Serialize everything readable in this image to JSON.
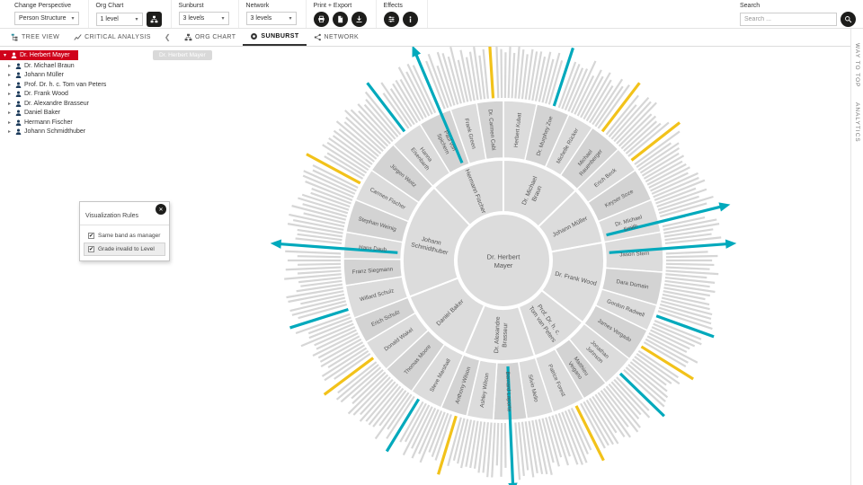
{
  "toolbar": {
    "change_perspective": {
      "label": "Change Perspective",
      "value": "Person Structure"
    },
    "org_chart": {
      "label": "Org Chart",
      "value": "1 level"
    },
    "sunburst": {
      "label": "Sunburst",
      "value": "3 levels"
    },
    "network": {
      "label": "Network",
      "value": "3 levels"
    },
    "print_export": {
      "label": "Print + Export",
      "icons": [
        "print-icon",
        "export-document-icon",
        "download-icon"
      ]
    },
    "effects": {
      "label": "Effects",
      "icons": [
        "effects-sliders-icon",
        "info-icon"
      ]
    },
    "search": {
      "label": "Search",
      "placeholder": "Search ...",
      "icon": "search-icon"
    }
  },
  "tabbar": {
    "tree_view": "TREE VIEW",
    "critical_analysis": "CRITICAL ANALYSIS",
    "org_chart": "ORG CHART",
    "sunburst": "SUNBURST",
    "network": "NETWORK"
  },
  "sidebar": {
    "items": [
      {
        "label": "Dr. Herbert Mayer",
        "selected": true,
        "depth": 0
      },
      {
        "label": "Dr. Michael Braun",
        "depth": 1
      },
      {
        "label": "Johann Müller",
        "depth": 1
      },
      {
        "label": "Prof. Dr. h. c. Tom van Peters",
        "depth": 1
      },
      {
        "label": "Dr. Frank Wood",
        "depth": 1
      },
      {
        "label": "Dr. Alexandre Brasseur",
        "depth": 1
      },
      {
        "label": "Daniel Baker",
        "depth": 1
      },
      {
        "label": "Hermann Fischer",
        "depth": 1
      },
      {
        "label": "Johann Schmidthuber",
        "depth": 1
      }
    ]
  },
  "panel": {
    "title": "Visualization Rules",
    "options": [
      {
        "label": "Same band as manager",
        "checked": true
      },
      {
        "label": "Grade invalid to Level",
        "checked": true
      }
    ]
  },
  "ghost_chip": "Dr. Herbert Mayer",
  "right_rail": {
    "items": [
      "WAY TO TOP",
      "ANALYTICS"
    ]
  },
  "chart_data": {
    "type": "sunburst",
    "center": "Dr. Herbert Mayer",
    "start_angle_deg": -90,
    "levels_shown": 3,
    "colors": {
      "ring": "#dcdcdc",
      "ring_alt": "#d3d3d3",
      "hair": "#d6d6d6",
      "teal": "#00a9bc",
      "yellow": "#f2c21a",
      "label": "#555555",
      "selected_red": "#d0021b"
    },
    "branches": [
      {
        "name": "Dr. Michael Braun",
        "children": [
          {
            "name": "Herbert Kubat",
            "leaves": 5
          },
          {
            "name": "Dr. Murphey Zoe",
            "leaves": 5
          },
          {
            "name": "Michelle Rücker",
            "leaves": 4
          },
          {
            "name": "Michael Rauenberger",
            "leaves": 5
          }
        ]
      },
      {
        "name": "Johann Müller",
        "children": [
          {
            "name": "Erich Beck",
            "leaves": 4
          },
          {
            "name": "Keyser Soze",
            "leaves": 5
          },
          {
            "name": "Dr. Michael Smith",
            "leaves": 5
          }
        ]
      },
      {
        "name": "Dr. Frank Wood",
        "children": [
          {
            "name": "Jason Stern",
            "leaves": 6
          },
          {
            "name": "Dara Domain",
            "leaves": 5
          },
          {
            "name": "Gordon Radwell",
            "leaves": 4
          },
          {
            "name": "James Vergado",
            "leaves": 5
          }
        ]
      },
      {
        "name": "Prof. Dr. h. c. Tom van Peters",
        "children": [
          {
            "name": "Jonathan Johnson",
            "leaves": 5
          },
          {
            "name": "Matthieu Veigano",
            "leaves": 4
          },
          {
            "name": "Patrice Forest",
            "leaves": 5
          }
        ]
      },
      {
        "name": "Dr. Alexandre Brasseur",
        "children": [
          {
            "name": "Silvio Mello",
            "leaves": 4
          },
          {
            "name": "Bernard Laporte",
            "leaves": 5
          },
          {
            "name": "Ashley Wilson",
            "leaves": 4
          },
          {
            "name": "Anthony Wilson",
            "leaves": 4
          }
        ]
      },
      {
        "name": "Daniel Baker",
        "children": [
          {
            "name": "Steve Marshall",
            "leaves": 5
          },
          {
            "name": "Thomas Moore",
            "leaves": 5
          },
          {
            "name": "Donald Wakel",
            "leaves": 5
          },
          {
            "name": "Erich Schulz",
            "leaves": 4
          }
        ]
      },
      {
        "name": "Johann Schmidthuber",
        "children": [
          {
            "name": "Willard Schulz",
            "leaves": 5
          },
          {
            "name": "Franz Siegmann",
            "leaves": 4
          },
          {
            "name": "Hans Daub",
            "leaves": 4
          },
          {
            "name": "Stephan Weinig",
            "leaves": 5
          },
          {
            "name": "Carmen Fischer",
            "leaves": 5
          },
          {
            "name": "Jürgen Weitz",
            "leaves": 5
          }
        ]
      },
      {
        "name": "Hermann Fischer",
        "children": [
          {
            "name": "Hanna Eisenbarth",
            "leaves": 5
          },
          {
            "name": "Paul von Spichern",
            "leaves": 5
          },
          {
            "name": "Frank Green",
            "leaves": 4
          },
          {
            "name": "Dr. Carmen Cabi",
            "leaves": 4
          }
        ]
      }
    ],
    "highlights": [
      {
        "branch": 0,
        "child": 1,
        "leaf": 2,
        "color": "teal"
      },
      {
        "branch": 0,
        "child": 3,
        "leaf": 1,
        "color": "yellow"
      },
      {
        "branch": 1,
        "child": 0,
        "leaf": 2,
        "color": "yellow"
      },
      {
        "branch": 1,
        "child": 2,
        "leaf": 3,
        "color": "teal",
        "arrow": true
      },
      {
        "branch": 2,
        "child": 0,
        "leaf": 2,
        "color": "teal",
        "arrow": true
      },
      {
        "branch": 2,
        "child": 2,
        "leaf": 1,
        "color": "teal"
      },
      {
        "branch": 2,
        "child": 3,
        "leaf": 2,
        "color": "yellow"
      },
      {
        "branch": 3,
        "child": 0,
        "leaf": 2,
        "color": "teal"
      },
      {
        "branch": 3,
        "child": 2,
        "leaf": 1,
        "color": "yellow"
      },
      {
        "branch": 4,
        "child": 1,
        "leaf": 2,
        "color": "teal",
        "arrow": true
      },
      {
        "branch": 4,
        "child": 3,
        "leaf": 1,
        "color": "yellow"
      },
      {
        "branch": 5,
        "child": 0,
        "leaf": 3,
        "color": "teal"
      },
      {
        "branch": 5,
        "child": 2,
        "leaf": 2,
        "color": "yellow"
      },
      {
        "branch": 6,
        "child": 0,
        "leaf": 1,
        "color": "teal"
      },
      {
        "branch": 6,
        "child": 2,
        "leaf": 1,
        "color": "teal",
        "arrow": true
      },
      {
        "branch": 6,
        "child": 4,
        "leaf": 2,
        "color": "yellow"
      },
      {
        "branch": 7,
        "child": 0,
        "leaf": 2,
        "color": "teal"
      },
      {
        "branch": 7,
        "child": 1,
        "leaf": 3,
        "color": "teal",
        "arrow": true
      },
      {
        "branch": 7,
        "child": 3,
        "leaf": 2,
        "color": "yellow"
      }
    ]
  }
}
